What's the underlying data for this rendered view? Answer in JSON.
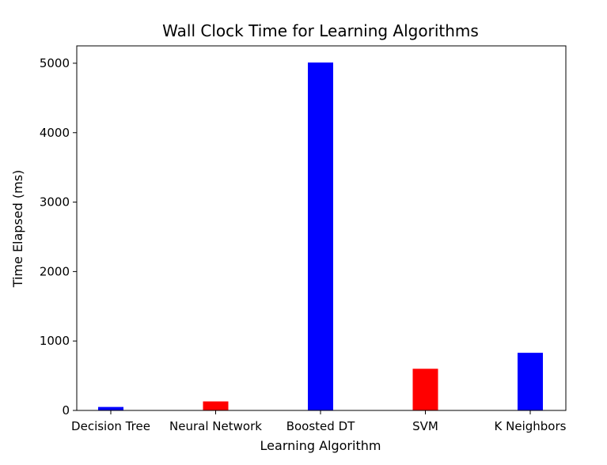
{
  "chart_data": {
    "type": "bar",
    "title": "Wall Clock Time for Learning Algorithms",
    "xlabel": "Learning Algorithm",
    "ylabel": "Time Elapsed (ms)",
    "categories": [
      "Decision Tree",
      "Neural Network",
      "Boosted DT",
      "SVM",
      "K Neighbors"
    ],
    "values": [
      50,
      130,
      5010,
      600,
      830
    ],
    "colors": [
      "#0000ff",
      "#ff0000",
      "#0000ff",
      "#ff0000",
      "#0000ff"
    ],
    "ylim": [
      0,
      5250
    ],
    "yticks": [
      0,
      1000,
      2000,
      3000,
      4000,
      5000
    ],
    "ytick_labels": [
      "0",
      "1000",
      "2000",
      "3000",
      "4000",
      "5000"
    ],
    "grid": false,
    "legend": "none"
  }
}
